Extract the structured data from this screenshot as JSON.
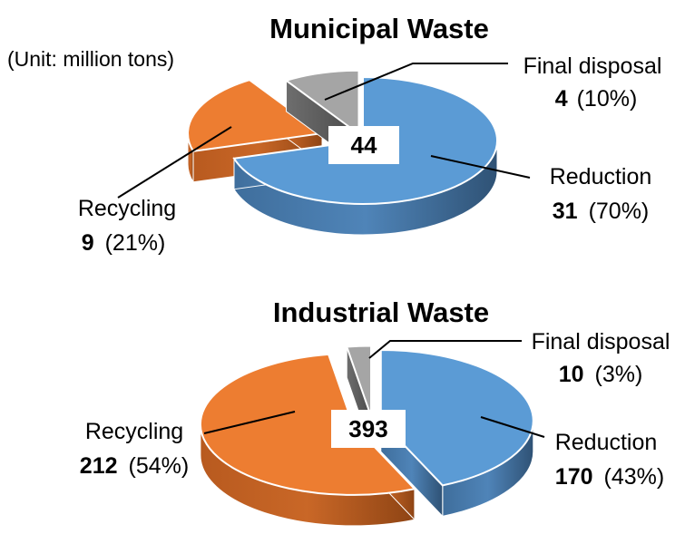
{
  "unit_note": "(Unit: million tons)",
  "chart_data": [
    {
      "type": "pie",
      "title": "Municipal Waste",
      "total": "44",
      "slices": [
        {
          "label": "Reduction",
          "value": 31,
          "value_text": "31",
          "percent_text": "(70%)",
          "color": "#5B9BD5"
        },
        {
          "label": "Recycling",
          "value": 9,
          "value_text": "9",
          "percent_text": "(21%)",
          "color": "#ED7D31"
        },
        {
          "label": "Final disposal",
          "value": 4,
          "value_text": "4",
          "percent_text": "(10%)",
          "color": "#A5A5A5"
        }
      ]
    },
    {
      "type": "pie",
      "title": "Industrial Waste",
      "total": "393",
      "slices": [
        {
          "label": "Reduction",
          "value": 170,
          "value_text": "170",
          "percent_text": "(43%)",
          "color": "#5B9BD5"
        },
        {
          "label": "Recycling",
          "value": 212,
          "value_text": "212",
          "percent_text": "(54%)",
          "color": "#ED7D31"
        },
        {
          "label": "Final disposal",
          "value": 10,
          "value_text": "10",
          "percent_text": "(3%)",
          "color": "#A5A5A5"
        }
      ]
    }
  ]
}
